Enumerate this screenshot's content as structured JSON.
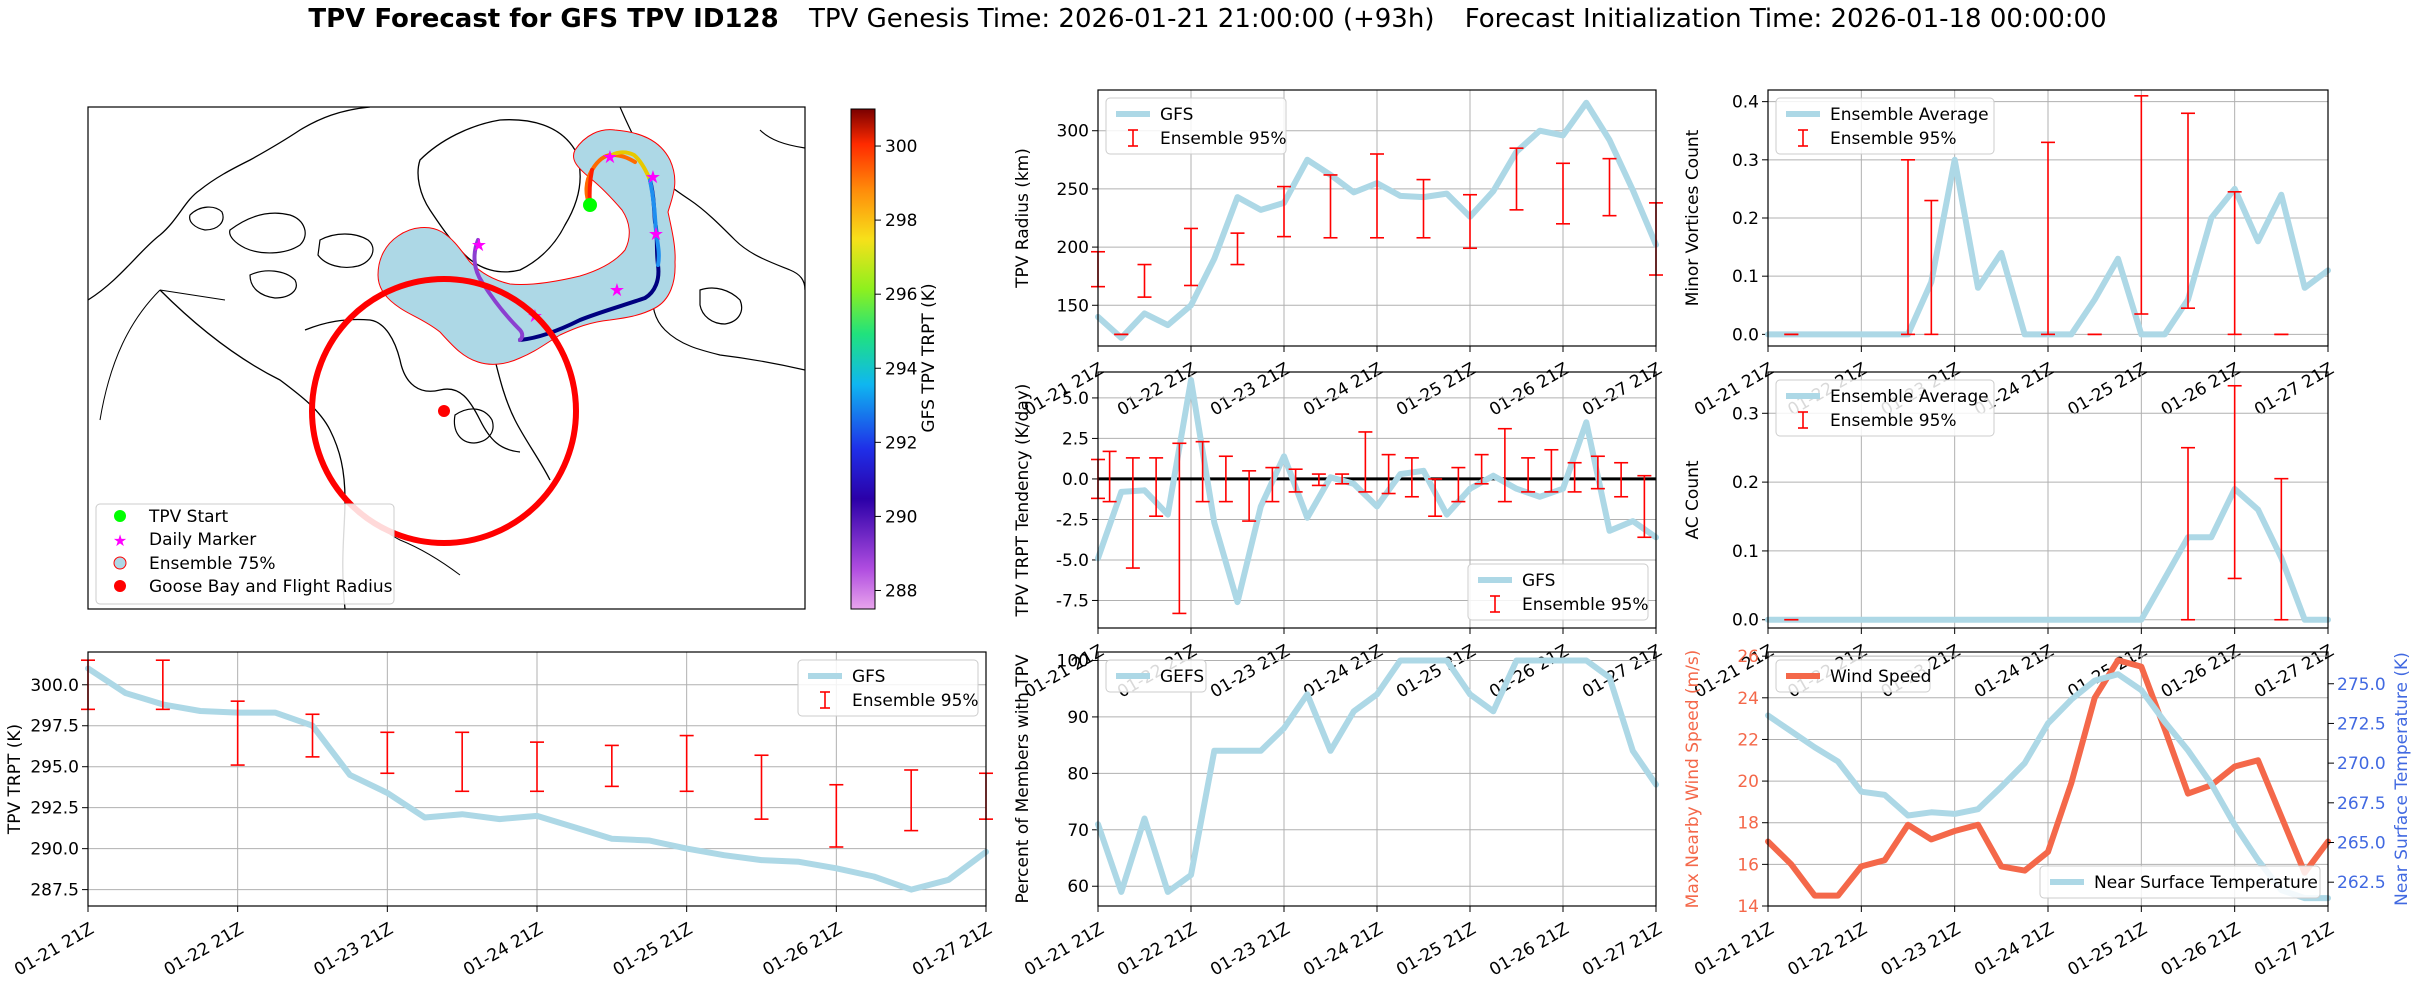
{
  "figure": {
    "title_bold": "TPV Forecast for GFS TPV ID128",
    "title_genesis": "TPV Genesis Time: 2026-01-21 21:00:00 (+93h)",
    "title_init": "Forecast Initialization Time: 2026-01-18 00:00:00"
  },
  "colors": {
    "gfs": "#add8e6",
    "ensemble": "#ff0000",
    "wind": "#f4684a",
    "temp_axis": "#4169e1",
    "grid": "#b0b0b0",
    "flight": "#ff0000",
    "shade": "#add8e6",
    "start": "#00ff00",
    "marker": "#ff00ff"
  },
  "time_ticks": [
    "01-21 21Z",
    "01-22 21Z",
    "01-23 21Z",
    "01-24 21Z",
    "01-25 21Z",
    "01-26 21Z",
    "01-27 21Z"
  ],
  "map": {
    "legend": [
      {
        "label": "TPV Start",
        "kind": "start-dot"
      },
      {
        "label": "Daily Marker",
        "kind": "star"
      },
      {
        "label": "Ensemble 75%",
        "kind": "shade"
      },
      {
        "label": "Goose Bay and Flight Radius",
        "kind": "red-dot"
      }
    ],
    "colorbar": {
      "label": "GFS TPV TRPT (K)",
      "ticks": [
        288,
        290,
        292,
        294,
        296,
        298,
        300
      ],
      "min": 287.5,
      "max": 301.0
    }
  },
  "chart_data": [
    {
      "id": "trpt",
      "type": "line",
      "title": "",
      "xlabel": "",
      "ylabel": "TPV TRPT (K)",
      "ylim": [
        286.5,
        302.0
      ],
      "yticks": [
        287.5,
        290.0,
        292.5,
        295.0,
        297.5,
        300.0
      ],
      "series": [
        {
          "name": "GFS",
          "x": [
            0,
            0.25,
            0.5,
            0.75,
            1.0,
            1.25,
            1.5,
            1.75,
            2.0,
            2.25,
            2.5,
            2.75,
            3.0,
            3.25,
            3.5,
            3.75,
            4.0,
            4.25,
            4.5,
            4.75,
            5.0,
            5.25,
            5.5,
            5.75,
            6.0
          ],
          "values": [
            301.0,
            299.5,
            298.8,
            298.4,
            298.3,
            298.3,
            297.5,
            294.5,
            293.4,
            291.9,
            292.1,
            291.8,
            292.0,
            291.3,
            290.6,
            290.5,
            290.0,
            289.6,
            289.3,
            289.2,
            288.8,
            288.3,
            287.5,
            288.1,
            289.8
          ]
        }
      ],
      "ensemble_95": [
        {
          "x": 0.0,
          "low": 298.5,
          "high": 301.5
        },
        {
          "x": 0.5,
          "low": 298.5,
          "high": 301.5
        },
        {
          "x": 1.0,
          "low": 295.1,
          "high": 299.0
        },
        {
          "x": 1.5,
          "low": 295.6,
          "high": 298.2
        },
        {
          "x": 2.0,
          "low": 294.6,
          "high": 297.1
        },
        {
          "x": 2.5,
          "low": 293.5,
          "high": 297.1
        },
        {
          "x": 3.0,
          "low": 293.5,
          "high": 296.5
        },
        {
          "x": 3.5,
          "low": 293.8,
          "high": 296.3
        },
        {
          "x": 4.0,
          "low": 293.5,
          "high": 296.9
        },
        {
          "x": 4.5,
          "low": 291.8,
          "high": 295.7
        },
        {
          "x": 5.0,
          "low": 290.1,
          "high": 293.9
        },
        {
          "x": 5.5,
          "low": 291.1,
          "high": 294.8
        },
        {
          "x": 6.0,
          "low": 291.8,
          "high": 294.6
        }
      ],
      "legend": [
        "GFS",
        "Ensemble 95%"
      ],
      "legend_position": "upper right"
    },
    {
      "id": "radius",
      "type": "line",
      "ylabel": "TPV Radius (km)",
      "ylim": [
        115,
        335
      ],
      "yticks": [
        150,
        200,
        250,
        300
      ],
      "series": [
        {
          "name": "GFS",
          "x": [
            0,
            0.25,
            0.5,
            0.75,
            1.0,
            1.25,
            1.5,
            1.75,
            2.0,
            2.25,
            2.5,
            2.75,
            3.0,
            3.25,
            3.5,
            3.75,
            4.0,
            4.25,
            4.5,
            4.75,
            5.0,
            5.25,
            5.5,
            5.75,
            6.0
          ],
          "values": [
            140,
            122,
            143,
            133,
            150,
            190,
            243,
            232,
            238,
            275,
            262,
            247,
            255,
            244,
            243,
            246,
            226,
            248,
            282,
            300,
            296,
            324,
            292,
            249,
            202
          ]
        }
      ],
      "ensemble_95": [
        {
          "x": 0.0,
          "low": 166,
          "high": 196
        },
        {
          "x": 0.25,
          "low": 125,
          "high": 125
        },
        {
          "x": 0.5,
          "low": 157,
          "high": 185
        },
        {
          "x": 1.0,
          "low": 167,
          "high": 216
        },
        {
          "x": 1.5,
          "low": 185,
          "high": 212
        },
        {
          "x": 2.0,
          "low": 209,
          "high": 252
        },
        {
          "x": 2.5,
          "low": 208,
          "high": 262
        },
        {
          "x": 3.0,
          "low": 208,
          "high": 280
        },
        {
          "x": 3.5,
          "low": 208,
          "high": 258
        },
        {
          "x": 4.0,
          "low": 199,
          "high": 245
        },
        {
          "x": 4.5,
          "low": 232,
          "high": 285
        },
        {
          "x": 5.0,
          "low": 220,
          "high": 272
        },
        {
          "x": 5.5,
          "low": 227,
          "high": 276
        },
        {
          "x": 6.0,
          "low": 176,
          "high": 238
        }
      ],
      "legend": [
        "GFS",
        "Ensemble 95%"
      ],
      "legend_position": "upper left"
    },
    {
      "id": "tendency",
      "type": "line",
      "ylabel": "TPV TRPT Tendency (K/day)",
      "ylim": [
        -9.2,
        6.6
      ],
      "yticks": [
        -7.5,
        -5.0,
        -2.5,
        0.0,
        2.5,
        5.0
      ],
      "zero_line": true,
      "series": [
        {
          "name": "GFS",
          "x": [
            0,
            0.25,
            0.5,
            0.75,
            1.0,
            1.25,
            1.5,
            1.75,
            2.0,
            2.25,
            2.5,
            2.75,
            3.0,
            3.25,
            3.5,
            3.75,
            4.0,
            4.25,
            4.5,
            4.75,
            5.0,
            5.25,
            5.5,
            5.75,
            6.0
          ],
          "values": [
            -4.9,
            -0.8,
            -0.7,
            -2.2,
            6.1,
            -2.7,
            -7.6,
            -1.7,
            1.4,
            -2.4,
            0.1,
            -0.3,
            -1.7,
            0.3,
            0.5,
            -2.2,
            -0.6,
            0.2,
            -0.6,
            -1.1,
            -0.6,
            3.5,
            -3.2,
            -2.6,
            -3.6
          ]
        }
      ],
      "ensemble_95": [
        {
          "x": 0.0,
          "low": -1.2,
          "high": 1.2
        },
        {
          "x": 0.125,
          "low": -1.4,
          "high": 1.7
        },
        {
          "x": 0.375,
          "low": -5.5,
          "high": 1.3
        },
        {
          "x": 0.625,
          "low": -2.3,
          "high": 1.3
        },
        {
          "x": 0.875,
          "low": -8.3,
          "high": 2.2
        },
        {
          "x": 1.125,
          "low": -1.4,
          "high": 2.3
        },
        {
          "x": 1.375,
          "low": -1.4,
          "high": 1.4
        },
        {
          "x": 1.625,
          "low": -2.6,
          "high": 0.5
        },
        {
          "x": 1.875,
          "low": -1.4,
          "high": 0.7
        },
        {
          "x": 2.125,
          "low": -0.8,
          "high": 0.6
        },
        {
          "x": 2.375,
          "low": -0.4,
          "high": 0.3
        },
        {
          "x": 2.625,
          "low": -0.3,
          "high": 0.3
        },
        {
          "x": 2.875,
          "low": -0.8,
          "high": 2.9
        },
        {
          "x": 3.125,
          "low": -0.9,
          "high": 1.5
        },
        {
          "x": 3.375,
          "low": -1.1,
          "high": 1.3
        },
        {
          "x": 3.625,
          "low": -2.3,
          "high": 0.0
        },
        {
          "x": 3.875,
          "low": -1.4,
          "high": 0.7
        },
        {
          "x": 4.125,
          "low": -0.3,
          "high": 1.5
        },
        {
          "x": 4.375,
          "low": -1.4,
          "high": 3.1
        },
        {
          "x": 4.625,
          "low": -0.8,
          "high": 1.3
        },
        {
          "x": 4.875,
          "low": -0.8,
          "high": 1.8
        },
        {
          "x": 5.125,
          "low": -0.8,
          "high": 1.0
        },
        {
          "x": 5.375,
          "low": -0.6,
          "high": 1.4
        },
        {
          "x": 5.625,
          "low": -1.1,
          "high": 1.0
        },
        {
          "x": 5.875,
          "low": -3.6,
          "high": 0.2
        }
      ],
      "legend": [
        "GFS",
        "Ensemble 95%"
      ],
      "legend_position": "lower right"
    },
    {
      "id": "members",
      "type": "line",
      "ylabel": "Percent of Members with TPV",
      "ylim": [
        56.5,
        101.5
      ],
      "yticks": [
        60,
        70,
        80,
        90,
        100
      ],
      "series": [
        {
          "name": "GEFS",
          "x": [
            0,
            0.25,
            0.5,
            0.75,
            1.0,
            1.25,
            1.5,
            1.75,
            2.0,
            2.25,
            2.5,
            2.75,
            3.0,
            3.25,
            3.5,
            3.75,
            4.0,
            4.25,
            4.5,
            4.75,
            5.0,
            5.25,
            5.5,
            5.75,
            6.0
          ],
          "values": [
            71,
            59,
            72,
            59,
            62,
            84,
            84,
            84,
            88,
            94,
            84,
            91,
            94,
            100,
            100,
            100,
            94,
            91,
            100,
            100,
            100,
            100,
            97,
            84,
            78
          ]
        }
      ],
      "legend": [
        "GEFS"
      ],
      "legend_position": "upper left"
    },
    {
      "id": "minor",
      "type": "line",
      "ylabel": "Minor Vortices Count",
      "ylim": [
        -0.02,
        0.42
      ],
      "yticks": [
        0.0,
        0.1,
        0.2,
        0.3,
        0.4
      ],
      "series": [
        {
          "name": "Ensemble Average",
          "x": [
            0,
            0.25,
            0.5,
            0.75,
            1.0,
            1.25,
            1.5,
            1.75,
            2.0,
            2.25,
            2.5,
            2.75,
            3.0,
            3.25,
            3.5,
            3.75,
            4.0,
            4.25,
            4.5,
            4.75,
            5.0,
            5.25,
            5.5,
            5.75,
            6.0
          ],
          "values": [
            0,
            0,
            0,
            0,
            0,
            0,
            0,
            0.09,
            0.3,
            0.08,
            0.14,
            0,
            0,
            0,
            0.06,
            0.13,
            0,
            0,
            0.06,
            0.2,
            0.25,
            0.16,
            0.24,
            0.08,
            0.11
          ]
        }
      ],
      "ensemble_95": [
        {
          "x": 0.25,
          "low": 0.0,
          "high": 0.0
        },
        {
          "x": 1.5,
          "low": 0.0,
          "high": 0.3
        },
        {
          "x": 1.75,
          "low": 0.0,
          "high": 0.23
        },
        {
          "x": 3.0,
          "low": 0.0,
          "high": 0.33
        },
        {
          "x": 3.5,
          "low": 0.0,
          "high": 0.0
        },
        {
          "x": 4.0,
          "low": 0.035,
          "high": 0.41
        },
        {
          "x": 4.5,
          "low": 0.045,
          "high": 0.38
        },
        {
          "x": 5.0,
          "low": 0.0,
          "high": 0.245
        },
        {
          "x": 5.5,
          "low": 0.0,
          "high": 0.0
        }
      ],
      "legend": [
        "Ensemble Average",
        "Ensemble 95%"
      ],
      "legend_position": "upper left"
    },
    {
      "id": "ac",
      "type": "line",
      "ylabel": "AC Count",
      "ylim": [
        -0.012,
        0.36
      ],
      "yticks": [
        0.0,
        0.1,
        0.2,
        0.3
      ],
      "series": [
        {
          "name": "Ensemble Average",
          "x": [
            0,
            0.25,
            0.5,
            0.75,
            1.0,
            1.25,
            1.5,
            1.75,
            2.0,
            2.25,
            2.5,
            2.75,
            3.0,
            3.25,
            3.5,
            3.75,
            4.0,
            4.25,
            4.5,
            4.75,
            5.0,
            5.25,
            5.5,
            5.75,
            6.0
          ],
          "values": [
            0,
            0,
            0,
            0,
            0,
            0,
            0,
            0,
            0,
            0,
            0,
            0,
            0,
            0,
            0,
            0,
            0,
            0.06,
            0.12,
            0.12,
            0.19,
            0.16,
            0.09,
            0,
            0
          ]
        }
      ],
      "ensemble_95": [
        {
          "x": 0.25,
          "low": 0.0,
          "high": 0.0
        },
        {
          "x": 4.5,
          "low": 0.0,
          "high": 0.25
        },
        {
          "x": 5.0,
          "low": 0.06,
          "high": 0.34
        },
        {
          "x": 5.5,
          "low": 0.0,
          "high": 0.205
        }
      ],
      "legend": [
        "Ensemble Average",
        "Ensemble 95%"
      ],
      "legend_position": "upper left"
    },
    {
      "id": "wind_temp",
      "type": "line",
      "ylabel": "Max Nearby Wind Speed (m/s)",
      "ylabel_right": "Near Surface Temperature (K)",
      "ylim": [
        14.0,
        26.2
      ],
      "yticks": [
        14,
        16,
        18,
        20,
        22,
        24,
        26
      ],
      "ylim_right": [
        261.0,
        277.0
      ],
      "yticks_right": [
        262.5,
        265.0,
        267.5,
        270.0,
        272.5,
        275.0
      ],
      "series": [
        {
          "name": "Wind Speed",
          "axis": "left",
          "x": [
            0,
            0.25,
            0.5,
            0.75,
            1.0,
            1.25,
            1.5,
            1.75,
            2.0,
            2.25,
            2.5,
            2.75,
            3.0,
            3.25,
            3.5,
            3.75,
            4.0,
            4.25,
            4.5,
            4.75,
            5.0,
            5.25,
            5.5,
            5.75,
            6.0
          ],
          "values": [
            17.1,
            16.0,
            14.5,
            14.5,
            15.9,
            16.2,
            17.9,
            17.2,
            17.6,
            17.9,
            15.9,
            15.7,
            16.6,
            19.9,
            24.0,
            25.8,
            25.5,
            22.5,
            19.4,
            19.8,
            20.7,
            21.0,
            18.3,
            15.6,
            17.1
          ]
        },
        {
          "name": "Near Surface Temperature",
          "axis": "right",
          "x": [
            0,
            0.25,
            0.5,
            0.75,
            1.0,
            1.25,
            1.5,
            1.75,
            2.0,
            2.25,
            2.5,
            2.75,
            3.0,
            3.25,
            3.5,
            3.75,
            4.0,
            4.25,
            4.5,
            4.75,
            5.0,
            5.25,
            5.5,
            5.75,
            6.0
          ],
          "values": [
            273.0,
            272.0,
            271.0,
            270.1,
            268.2,
            268.0,
            266.7,
            266.9,
            266.8,
            267.1,
            268.5,
            270.0,
            272.5,
            274.0,
            275.2,
            275.6,
            274.6,
            272.6,
            270.8,
            268.7,
            266.1,
            263.9,
            262.0,
            261.5,
            261.5
          ]
        }
      ],
      "legend": [
        "Wind Speed",
        "Near Surface Temperature"
      ],
      "legend_position": "upper left / lower right"
    }
  ]
}
